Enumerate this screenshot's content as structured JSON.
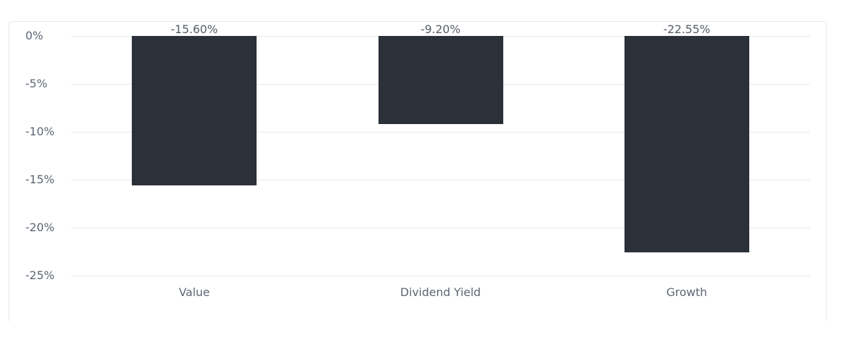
{
  "chart_data": {
    "type": "bar",
    "title": "",
    "xlabel": "",
    "ylabel": "",
    "categories": [
      "Value",
      "Dividend Yield",
      "Growth"
    ],
    "values": [
      -15.6,
      -9.2,
      -22.55
    ],
    "data_labels": [
      "-15.60%",
      "-9.20%",
      "-22.55%"
    ],
    "y_ticks": [
      {
        "label": "0%",
        "value": 0
      },
      {
        "label": "-5%",
        "value": -5
      },
      {
        "label": "-10%",
        "value": -10
      },
      {
        "label": "-15%",
        "value": -15
      },
      {
        "label": "-20%",
        "value": -20
      },
      {
        "label": "-25%",
        "value": -25
      }
    ],
    "ylim": [
      -25,
      0
    ],
    "grid": true,
    "legend": false,
    "colors": {
      "bar": "#2c3039",
      "gridline": "#e8e8e8",
      "tick_text": "#5d6673",
      "category_text": "#5d6673",
      "data_label_text": "#555c65",
      "card_border": "#e7e9ec",
      "background": "#ffffff"
    }
  }
}
